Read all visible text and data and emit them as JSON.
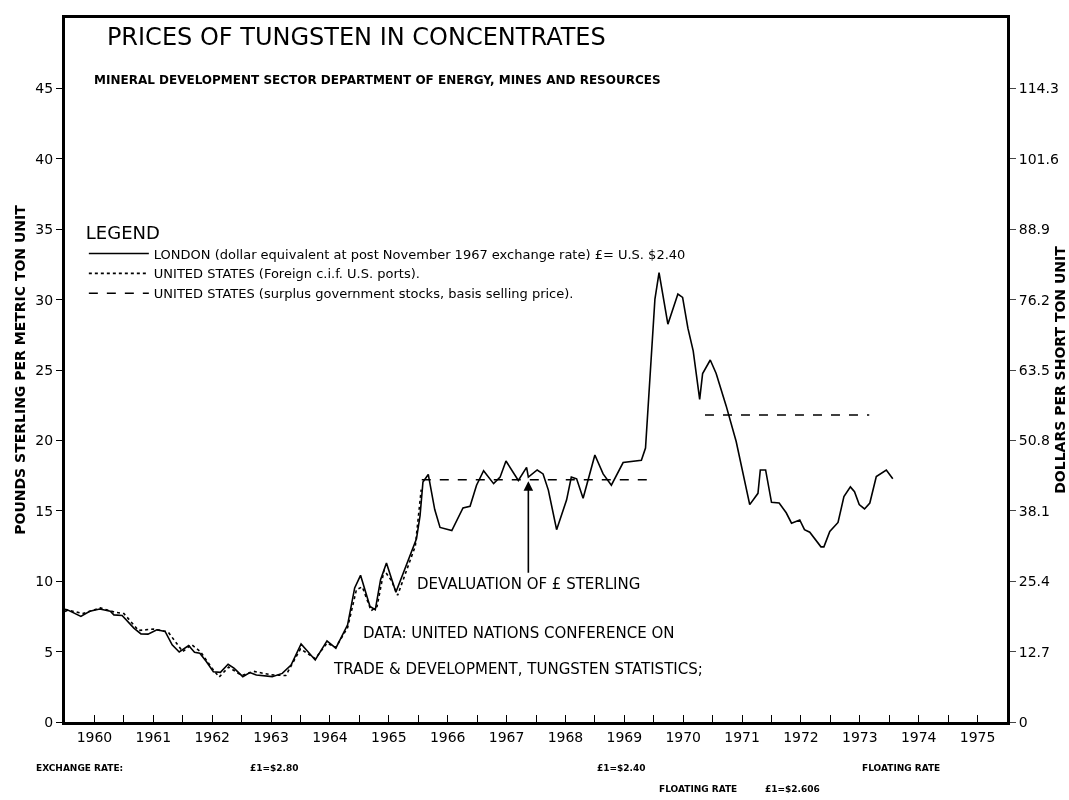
{
  "chart_data": {
    "type": "line",
    "title": "PRICES OF TUNGSTEN IN CONCENTRATES",
    "subtitle": "MINERAL DEVELOPMENT SECTOR DEPARTMENT OF ENERGY, MINES AND RESOURCES",
    "ylabel": "POUNDS STERLING PER METRIC TON UNIT",
    "y2label": "DOLLARS PER SHORT TON UNIT",
    "legend_title": "LEGEND",
    "legend": "top left",
    "grid": false,
    "marker": "none",
    "xlim": [
      1960,
      1976
    ],
    "xticks": [
      {
        "value": 1960,
        "label": null
      },
      {
        "value": 1960.5,
        "label": "1960"
      },
      {
        "value": 1961,
        "label": null
      },
      {
        "value": 1961.5,
        "label": "1961"
      },
      {
        "value": 1962,
        "label": null
      },
      {
        "value": 1962.5,
        "label": "1962"
      },
      {
        "value": 1963,
        "label": null
      },
      {
        "value": 1963.5,
        "label": "1963"
      },
      {
        "value": 1964,
        "label": null
      },
      {
        "value": 1964.5,
        "label": "1964"
      },
      {
        "value": 1965,
        "label": null
      },
      {
        "value": 1965.5,
        "label": "1965"
      },
      {
        "value": 1966,
        "label": null
      },
      {
        "value": 1966.5,
        "label": "1966"
      },
      {
        "value": 1967,
        "label": null
      },
      {
        "value": 1967.5,
        "label": "1967"
      },
      {
        "value": 1968,
        "label": null
      },
      {
        "value": 1968.5,
        "label": "1968"
      },
      {
        "value": 1969,
        "label": null
      },
      {
        "value": 1969.5,
        "label": "1969"
      },
      {
        "value": 1970,
        "label": null
      },
      {
        "value": 1970.5,
        "label": "1970"
      },
      {
        "value": 1971,
        "label": null
      },
      {
        "value": 1971.5,
        "label": "1971"
      },
      {
        "value": 1972,
        "label": null
      },
      {
        "value": 1972.5,
        "label": "1972"
      },
      {
        "value": 1973,
        "label": null
      },
      {
        "value": 1973.5,
        "label": "1973"
      },
      {
        "value": 1974,
        "label": null
      },
      {
        "value": 1974.5,
        "label": "1974"
      },
      {
        "value": 1975,
        "label": null
      },
      {
        "value": 1975.5,
        "label": "1975"
      }
    ],
    "ylim": [
      0,
      50
    ],
    "yticks": [
      0,
      5,
      10,
      15,
      20,
      25,
      30,
      35,
      40,
      45
    ],
    "y2lim": [
      0,
      127
    ],
    "y2ticks": [
      0,
      12.7,
      25.4,
      38.1,
      50.8,
      63.5,
      76.2,
      88.9,
      101.6,
      114.3
    ],
    "series": [
      {
        "name": "LONDON (dollar equivalent at post November 1967 exchange rate) £= U.S. $2.40",
        "color": "#000000",
        "line_style": "solid",
        "x": [
          1960.0,
          1960.05,
          1960.27,
          1960.42,
          1960.59,
          1960.77,
          1960.83,
          1960.97,
          1961.17,
          1961.29,
          1961.41,
          1961.56,
          1961.7,
          1961.82,
          1961.94,
          1962.1,
          1962.2,
          1962.29,
          1962.4,
          1962.52,
          1962.64,
          1962.77,
          1962.87,
          1963.02,
          1963.14,
          1963.25,
          1963.52,
          1963.69,
          1963.84,
          1964.01,
          1964.25,
          1964.45,
          1964.6,
          1964.8,
          1964.92,
          1965.02,
          1965.18,
          1965.27,
          1965.36,
          1965.46,
          1965.62,
          1965.97,
          1966.03,
          1966.08,
          1966.17,
          1966.28,
          1966.37,
          1966.57,
          1966.76,
          1966.88,
          1966.99,
          1967.11,
          1967.28,
          1967.39,
          1967.49,
          1967.7,
          1967.84,
          1967.87,
          1968.02,
          1968.12,
          1968.21,
          1968.35,
          1968.52,
          1968.6,
          1968.69,
          1968.8,
          1969.0,
          1969.14,
          1969.28,
          1969.48,
          1969.79,
          1969.86,
          1970.02,
          1970.09,
          1970.24,
          1970.41,
          1970.49,
          1970.58,
          1970.67,
          1970.78,
          1970.83,
          1970.96,
          1971.06,
          1971.23,
          1971.4,
          1971.63,
          1971.77,
          1971.81,
          1971.9,
          1972.0,
          1972.13,
          1972.25,
          1972.34,
          1972.48,
          1972.56,
          1972.65,
          1972.84,
          1972.89,
          1972.99,
          1973.13,
          1973.23,
          1973.34,
          1973.41,
          1973.49,
          1973.58,
          1973.67,
          1973.78,
          1973.95,
          1974.06
        ],
        "values": [
          7.85,
          7.95,
          7.5,
          7.87,
          8.02,
          7.87,
          7.61,
          7.57,
          6.67,
          6.26,
          6.24,
          6.55,
          6.43,
          5.48,
          4.97,
          5.43,
          4.95,
          4.88,
          4.29,
          3.57,
          3.53,
          4.1,
          3.82,
          3.22,
          3.51,
          3.34,
          3.22,
          3.45,
          4.05,
          5.55,
          4.41,
          5.76,
          5.24,
          6.9,
          9.52,
          10.42,
          8.21,
          7.97,
          10.11,
          11.3,
          9.22,
          13.02,
          14.63,
          17.05,
          17.58,
          15.09,
          13.82,
          13.6,
          15.2,
          15.32,
          16.82,
          17.85,
          16.93,
          17.39,
          18.54,
          17.16,
          18.08,
          17.39,
          17.9,
          17.62,
          16.47,
          13.66,
          15.78,
          17.39,
          17.27,
          15.89,
          18.96,
          17.62,
          16.82,
          18.43,
          18.59,
          19.46,
          30.04,
          31.92,
          28.25,
          30.39,
          30.16,
          27.97,
          26.36,
          22.91,
          24.75,
          25.71,
          24.75,
          22.45,
          19.92,
          15.44,
          16.24,
          17.9,
          17.9,
          15.6,
          15.55,
          14.86,
          14.12,
          14.35,
          13.66,
          13.48,
          12.44,
          12.44,
          13.53,
          14.17,
          16.01,
          16.7,
          16.36,
          15.44,
          15.13,
          15.55,
          17.43,
          17.9,
          17.27
        ]
      },
      {
        "name": "UNITED STATES (Foreign c.i.f. U.S. ports).",
        "color": "#000000",
        "line_style": "dotted",
        "x": [
          1960.0,
          1960.3,
          1960.6,
          1960.85,
          1961.0,
          1961.25,
          1961.5,
          1961.75,
          1962.0,
          1962.15,
          1962.3,
          1962.5,
          1962.62,
          1962.78,
          1963.0,
          1963.2,
          1963.5,
          1963.75,
          1964.0,
          1964.25,
          1964.45,
          1964.6,
          1964.8,
          1964.95,
          1965.05,
          1965.2,
          1965.3,
          1965.42,
          1965.55,
          1965.65,
          1965.95,
          1966.05
        ],
        "values": [
          8.0,
          7.7,
          8.1,
          7.8,
          7.7,
          6.5,
          6.6,
          6.4,
          5.0,
          5.5,
          5.0,
          3.8,
          3.2,
          3.9,
          3.3,
          3.6,
          3.35,
          3.3,
          5.2,
          4.5,
          5.6,
          5.3,
          6.7,
          9.4,
          9.6,
          7.9,
          8.2,
          10.8,
          10.0,
          9.0,
          12.5,
          16.5
        ]
      },
      {
        "name": "UNITED STATES (surplus government stocks, basis selling price).",
        "color": "#000000",
        "line_style": "dashed",
        "x": [
          1966.06,
          1969.99,
          1970.4,
          1970.87,
          1973.66
        ],
        "values": [
          17.2,
          17.2,
          null,
          21.8,
          21.8
        ]
      }
    ],
    "annotations": [
      "DATA: UNITED NATIONS CONFERENCE ON",
      "TRADE & DEVELOPMENT, TUNGSTEN STATISTICS;",
      {
        "text": "DEVALUATION OF £ STERLING",
        "x": 1967.87,
        "y": 17.1
      },
      "EXCHANGE RATE:",
      "£1=$2.80",
      "£1=$2.40",
      "FLOATING RATE",
      "£1=$2.606",
      "FLOATING RATE"
    ]
  }
}
